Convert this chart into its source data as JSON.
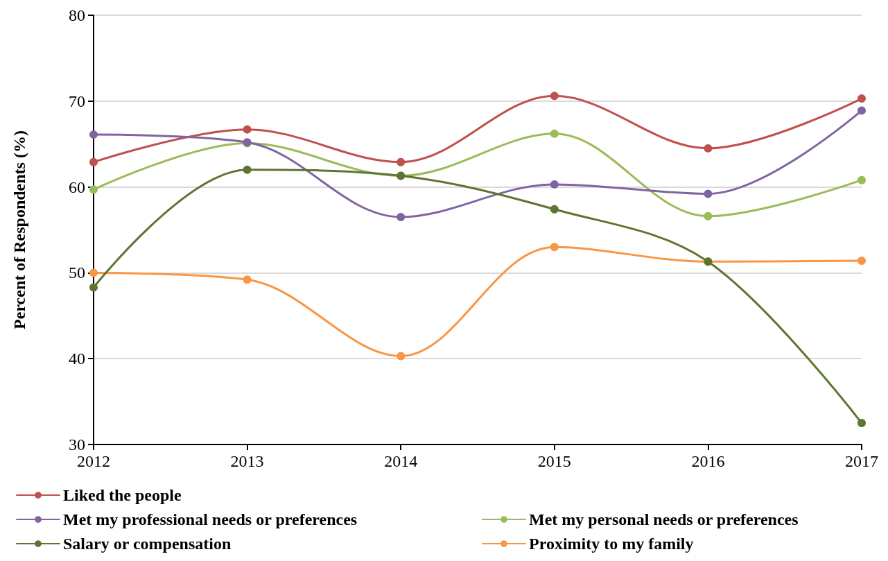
{
  "chart_data": {
    "type": "line",
    "ylabel": "Percent of Respondents (%)",
    "categories": [
      "2012",
      "2013",
      "2014",
      "2015",
      "2016",
      "2017"
    ],
    "series": [
      {
        "name": "Liked the people",
        "color": "#c0504d",
        "values": [
          62.9,
          66.7,
          62.9,
          70.6,
          64.5,
          70.3
        ]
      },
      {
        "name": "Met my personal needs or preferences",
        "color": "#9bbb59",
        "values": [
          59.7,
          65.1,
          61.3,
          66.2,
          56.6,
          60.8
        ]
      },
      {
        "name": "Met my professional needs or preferences",
        "color": "#8064a2",
        "values": [
          66.1,
          65.2,
          56.5,
          60.3,
          59.2,
          68.9
        ]
      },
      {
        "name": "Proximity to my family",
        "color": "#f79646",
        "values": [
          50.0,
          49.2,
          40.3,
          53.0,
          51.3,
          51.4
        ]
      },
      {
        "name": "Salary or compensation",
        "color": "#5e7530",
        "values": [
          48.3,
          62.0,
          61.3,
          57.4,
          51.3,
          32.5
        ]
      }
    ],
    "ylim": [
      30,
      80
    ],
    "yticks": [
      30,
      40,
      50,
      60,
      70,
      80
    ],
    "grid": "y",
    "legend": "bottom",
    "marker": "circle",
    "line_style": "solid"
  }
}
